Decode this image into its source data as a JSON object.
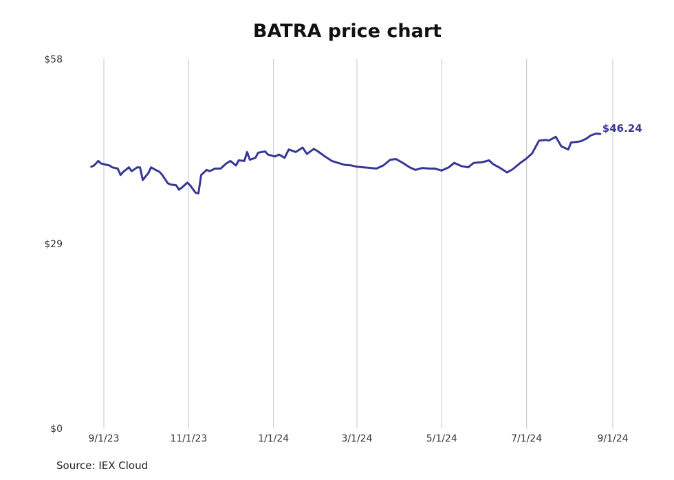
{
  "chart_data": {
    "type": "line",
    "title": "BATRA price chart",
    "source": "Source: IEX Cloud",
    "ylim": [
      0,
      58
    ],
    "y_ticks": [
      {
        "value": 0,
        "label": "$0"
      },
      {
        "value": 29,
        "label": "$29"
      },
      {
        "value": 58,
        "label": "$58"
      }
    ],
    "x_ticks": [
      {
        "date": "2023-09-01",
        "label": "9/1/23"
      },
      {
        "date": "2023-11-01",
        "label": "11/1/23"
      },
      {
        "date": "2024-01-01",
        "label": "1/1/24"
      },
      {
        "date": "2024-03-01",
        "label": "3/1/24"
      },
      {
        "date": "2024-05-01",
        "label": "5/1/24"
      },
      {
        "date": "2024-07-01",
        "label": "7/1/24"
      },
      {
        "date": "2024-09-01",
        "label": "9/1/24"
      }
    ],
    "xlim": [
      "2023-08-22",
      "2024-09-01"
    ],
    "grid": "vertical",
    "line_color": "#373795",
    "last_value_label": "$46.24",
    "series": [
      {
        "x": [
          "2023-08-23",
          "2023-08-25",
          "2023-08-28",
          "2023-08-30",
          "2023-09-01",
          "2023-09-05",
          "2023-09-07",
          "2023-09-11",
          "2023-09-13",
          "2023-09-15",
          "2023-09-19",
          "2023-09-21",
          "2023-09-25",
          "2023-09-27",
          "2023-09-29",
          "2023-10-03",
          "2023-10-05",
          "2023-10-09",
          "2023-10-11",
          "2023-10-13",
          "2023-10-17",
          "2023-10-19",
          "2023-10-23",
          "2023-10-25",
          "2023-10-27",
          "2023-10-31",
          "2023-11-02",
          "2023-11-06",
          "2023-11-08",
          "2023-11-10",
          "2023-11-14",
          "2023-11-16",
          "2023-11-20",
          "2023-11-24",
          "2023-11-28",
          "2023-12-01",
          "2023-12-05",
          "2023-12-07",
          "2023-12-11",
          "2023-12-13",
          "2023-12-15",
          "2023-12-19",
          "2023-12-21",
          "2023-12-26",
          "2023-12-28",
          "2024-01-02",
          "2024-01-05",
          "2024-01-09",
          "2024-01-12",
          "2024-01-17",
          "2024-01-22",
          "2024-01-25",
          "2024-01-30",
          "2024-02-02",
          "2024-02-07",
          "2024-02-12",
          "2024-02-15",
          "2024-02-21",
          "2024-02-26",
          "2024-03-01",
          "2024-03-06",
          "2024-03-11",
          "2024-03-15",
          "2024-03-20",
          "2024-03-25",
          "2024-03-29",
          "2024-04-03",
          "2024-04-08",
          "2024-04-12",
          "2024-04-17",
          "2024-04-22",
          "2024-04-26",
          "2024-05-01",
          "2024-05-06",
          "2024-05-10",
          "2024-05-15",
          "2024-05-20",
          "2024-05-24",
          "2024-05-30",
          "2024-06-04",
          "2024-06-07",
          "2024-06-12",
          "2024-06-17",
          "2024-06-21",
          "2024-06-26",
          "2024-07-01",
          "2024-07-05",
          "2024-07-10",
          "2024-07-15",
          "2024-07-17",
          "2024-07-22",
          "2024-07-26",
          "2024-07-31",
          "2024-08-02",
          "2024-08-06",
          "2024-08-09",
          "2024-08-13",
          "2024-08-16",
          "2024-08-20",
          "2024-08-23"
        ],
        "y": [
          41.1,
          41.3,
          42.0,
          41.6,
          41.5,
          41.3,
          41.0,
          40.8,
          39.8,
          40.3,
          41.0,
          40.4,
          41.0,
          41.0,
          39.0,
          40.1,
          41.0,
          40.5,
          40.3,
          39.8,
          38.5,
          38.3,
          38.2,
          37.5,
          37.8,
          38.6,
          38.2,
          37.0,
          36.9,
          39.8,
          40.6,
          40.4,
          40.8,
          40.8,
          41.6,
          42.0,
          41.3,
          42.1,
          42.0,
          43.4,
          42.2,
          42.5,
          43.3,
          43.5,
          43.0,
          42.7,
          43.0,
          42.5,
          43.8,
          43.4,
          44.1,
          43.1,
          43.9,
          43.5,
          42.7,
          42.0,
          41.8,
          41.4,
          41.3,
          41.1,
          41.0,
          40.9,
          40.8,
          41.3,
          42.2,
          42.3,
          41.7,
          41.0,
          40.6,
          40.9,
          40.8,
          40.8,
          40.5,
          41.0,
          41.7,
          41.2,
          41.0,
          41.7,
          41.8,
          42.1,
          41.5,
          40.9,
          40.2,
          40.7,
          41.6,
          42.4,
          43.2,
          45.2,
          45.3,
          45.2,
          45.8,
          44.3,
          43.8,
          44.9,
          45.0,
          45.1,
          45.5,
          46.0,
          46.3,
          46.24
        ]
      }
    ]
  }
}
